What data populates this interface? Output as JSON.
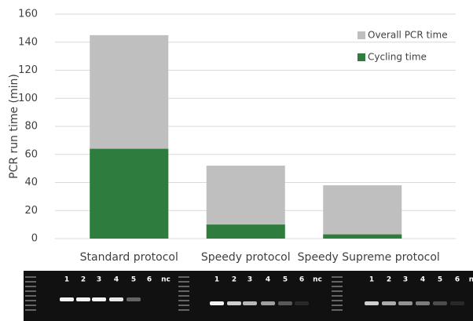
{
  "chart_data": {
    "type": "bar",
    "y_label": "PCR run time (min)",
    "categories": [
      "Standard protocol",
      "Speedy protocol",
      "Speedy Supreme protocol"
    ],
    "series": [
      {
        "name": "Overall PCR time",
        "color": "#bfbfbf",
        "values": [
          145,
          52,
          38
        ]
      },
      {
        "name": "Cycling time",
        "color": "#2e7d3e",
        "values": [
          64,
          10,
          3
        ]
      }
    ],
    "ylim": [
      0,
      160
    ],
    "yticks": [
      0,
      20,
      40,
      60,
      80,
      100,
      120,
      140,
      160
    ],
    "grid": true,
    "legend": "upper right"
  },
  "gel_panels": [
    {
      "lanes": [
        "1",
        "2",
        "3",
        "4",
        "5",
        "6",
        "nc"
      ]
    },
    {
      "lanes": [
        "1",
        "2",
        "3",
        "4",
        "5",
        "6",
        "nc"
      ]
    },
    {
      "lanes": [
        "1",
        "2",
        "3",
        "4",
        "5",
        "6",
        "n"
      ]
    }
  ]
}
